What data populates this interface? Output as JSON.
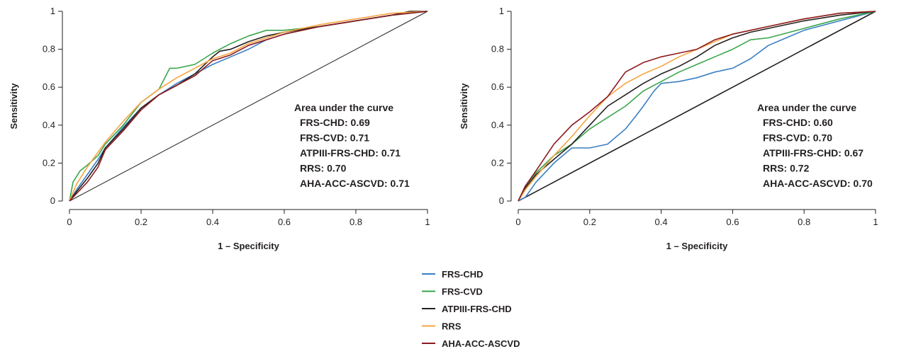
{
  "colors": {
    "FRS-CHD": "#3a7fc4",
    "FRS-CVD": "#3aa64a",
    "ATPIII-FRS-CHD": "#231f20",
    "RRS": "#f7a440",
    "AHA-ACC-ASCVD": "#8b1a1f"
  },
  "legend": {
    "placement": "bottom-center",
    "items": [
      "FRS-CHD",
      "FRS-CVD",
      "ATPIII-FRS-CHD",
      "RRS",
      "AHA-ACC-ASCVD"
    ]
  },
  "chart_data": [
    {
      "type": "line",
      "xlabel": "1 – Specificity",
      "ylabel": "Sensitivity",
      "xlim": [
        0,
        1
      ],
      "ylim": [
        0,
        1
      ],
      "xticks": [
        "0",
        "0.2",
        "0.4",
        "0.6",
        "0.8",
        "1"
      ],
      "yticks": [
        "0",
        "0.2",
        "0.4",
        "0.6",
        "0.8",
        "1"
      ],
      "diagonal": true,
      "annotation": {
        "title": "Area under the curve",
        "lines": [
          "FRS-CHD: 0.69",
          "FRS-CVD: 0.71",
          "ATPIII-FRS-CHD: 0.71",
          "RRS: 0.70",
          "AHA-ACC-ASCVD: 0.71"
        ]
      },
      "series": [
        {
          "name": "FRS-CHD",
          "x": [
            0,
            0.02,
            0.05,
            0.08,
            0.1,
            0.15,
            0.2,
            0.25,
            0.3,
            0.35,
            0.4,
            0.45,
            0.5,
            0.55,
            0.6,
            0.7,
            0.8,
            0.9,
            0.95,
            1
          ],
          "y": [
            0,
            0.06,
            0.14,
            0.22,
            0.28,
            0.39,
            0.49,
            0.56,
            0.62,
            0.67,
            0.72,
            0.76,
            0.8,
            0.85,
            0.88,
            0.92,
            0.95,
            0.98,
            0.99,
            1
          ]
        },
        {
          "name": "FRS-CVD",
          "x": [
            0,
            0.01,
            0.03,
            0.05,
            0.08,
            0.1,
            0.15,
            0.2,
            0.25,
            0.28,
            0.3,
            0.35,
            0.4,
            0.45,
            0.5,
            0.55,
            0.6,
            0.7,
            0.8,
            0.9,
            1
          ],
          "y": [
            0,
            0.1,
            0.16,
            0.19,
            0.24,
            0.3,
            0.4,
            0.52,
            0.59,
            0.7,
            0.7,
            0.72,
            0.78,
            0.83,
            0.87,
            0.9,
            0.9,
            0.92,
            0.95,
            0.98,
            1
          ]
        },
        {
          "name": "ATPIII-FRS-CHD",
          "x": [
            0,
            0.02,
            0.05,
            0.08,
            0.1,
            0.15,
            0.2,
            0.25,
            0.3,
            0.35,
            0.4,
            0.42,
            0.45,
            0.5,
            0.55,
            0.6,
            0.7,
            0.8,
            0.9,
            0.95,
            1
          ],
          "y": [
            0,
            0.05,
            0.12,
            0.2,
            0.28,
            0.38,
            0.49,
            0.56,
            0.61,
            0.67,
            0.76,
            0.79,
            0.8,
            0.84,
            0.87,
            0.89,
            0.92,
            0.95,
            0.98,
            1,
            1
          ]
        },
        {
          "name": "RRS",
          "x": [
            0,
            0.02,
            0.05,
            0.1,
            0.15,
            0.2,
            0.25,
            0.3,
            0.35,
            0.4,
            0.45,
            0.5,
            0.55,
            0.6,
            0.7,
            0.8,
            0.9,
            1
          ],
          "y": [
            0,
            0.09,
            0.18,
            0.31,
            0.42,
            0.52,
            0.59,
            0.65,
            0.7,
            0.75,
            0.78,
            0.83,
            0.86,
            0.89,
            0.93,
            0.96,
            0.99,
            1
          ]
        },
        {
          "name": "AHA-ACC-ASCVD",
          "x": [
            0,
            0.02,
            0.05,
            0.08,
            0.1,
            0.15,
            0.2,
            0.25,
            0.3,
            0.35,
            0.4,
            0.45,
            0.5,
            0.55,
            0.6,
            0.7,
            0.8,
            0.9,
            1
          ],
          "y": [
            0,
            0.04,
            0.1,
            0.18,
            0.27,
            0.37,
            0.48,
            0.56,
            0.61,
            0.66,
            0.74,
            0.77,
            0.82,
            0.85,
            0.88,
            0.92,
            0.95,
            0.98,
            1
          ]
        }
      ]
    },
    {
      "type": "line",
      "xlabel": "1 – Specificity",
      "ylabel": "Sensitivity",
      "xlim": [
        0,
        1
      ],
      "ylim": [
        0,
        1
      ],
      "xticks": [
        "0",
        "0.2",
        "0.4",
        "0.6",
        "0.8",
        "1"
      ],
      "yticks": [
        "0",
        "0.2",
        "0.4",
        "0.6",
        "0.8",
        "1"
      ],
      "diagonal": true,
      "annotation": {
        "title": "Area under the curve",
        "lines": [
          "FRS-CHD: 0.60",
          "FRS-CVD: 0.70",
          "ATPIII-FRS-CHD: 0.67",
          "RRS: 0.72",
          "AHA-ACC-ASCVD: 0.70"
        ]
      },
      "series": [
        {
          "name": "FRS-CHD",
          "x": [
            0,
            0.02,
            0.05,
            0.1,
            0.15,
            0.2,
            0.25,
            0.3,
            0.33,
            0.35,
            0.38,
            0.4,
            0.45,
            0.5,
            0.55,
            0.6,
            0.65,
            0.7,
            0.75,
            0.8,
            0.9,
            1
          ],
          "y": [
            0,
            0.02,
            0.1,
            0.2,
            0.28,
            0.28,
            0.3,
            0.38,
            0.45,
            0.5,
            0.58,
            0.62,
            0.63,
            0.65,
            0.68,
            0.7,
            0.75,
            0.82,
            0.86,
            0.9,
            0.95,
            1
          ]
        },
        {
          "name": "FRS-CVD",
          "x": [
            0,
            0.02,
            0.05,
            0.1,
            0.15,
            0.2,
            0.25,
            0.3,
            0.35,
            0.4,
            0.45,
            0.5,
            0.55,
            0.6,
            0.65,
            0.7,
            0.8,
            0.9,
            1
          ],
          "y": [
            0,
            0.08,
            0.15,
            0.24,
            0.3,
            0.38,
            0.44,
            0.5,
            0.58,
            0.63,
            0.68,
            0.72,
            0.76,
            0.8,
            0.85,
            0.86,
            0.91,
            0.96,
            1
          ]
        },
        {
          "name": "ATPIII-FRS-CHD",
          "x": [
            0,
            0.02,
            0.05,
            0.1,
            0.15,
            0.2,
            0.25,
            0.3,
            0.35,
            0.4,
            0.45,
            0.5,
            0.55,
            0.6,
            0.65,
            0.7,
            0.8,
            0.9,
            1
          ],
          "y": [
            0,
            0.07,
            0.14,
            0.22,
            0.3,
            0.4,
            0.5,
            0.56,
            0.62,
            0.67,
            0.71,
            0.76,
            0.82,
            0.86,
            0.89,
            0.91,
            0.95,
            0.98,
            1
          ]
        },
        {
          "name": "RRS",
          "x": [
            0,
            0.02,
            0.05,
            0.1,
            0.15,
            0.2,
            0.25,
            0.3,
            0.35,
            0.4,
            0.45,
            0.5,
            0.55,
            0.6,
            0.7,
            0.8,
            0.9,
            1
          ],
          "y": [
            0,
            0.06,
            0.13,
            0.24,
            0.34,
            0.45,
            0.55,
            0.62,
            0.67,
            0.71,
            0.76,
            0.8,
            0.84,
            0.88,
            0.92,
            0.96,
            0.99,
            1
          ]
        },
        {
          "name": "AHA-ACC-ASCVD",
          "x": [
            0,
            0.02,
            0.05,
            0.1,
            0.15,
            0.2,
            0.25,
            0.3,
            0.35,
            0.4,
            0.45,
            0.5,
            0.55,
            0.6,
            0.7,
            0.8,
            0.9,
            1
          ],
          "y": [
            0,
            0.08,
            0.16,
            0.3,
            0.4,
            0.47,
            0.55,
            0.68,
            0.73,
            0.76,
            0.78,
            0.8,
            0.85,
            0.88,
            0.92,
            0.96,
            0.99,
            1
          ]
        }
      ]
    }
  ]
}
